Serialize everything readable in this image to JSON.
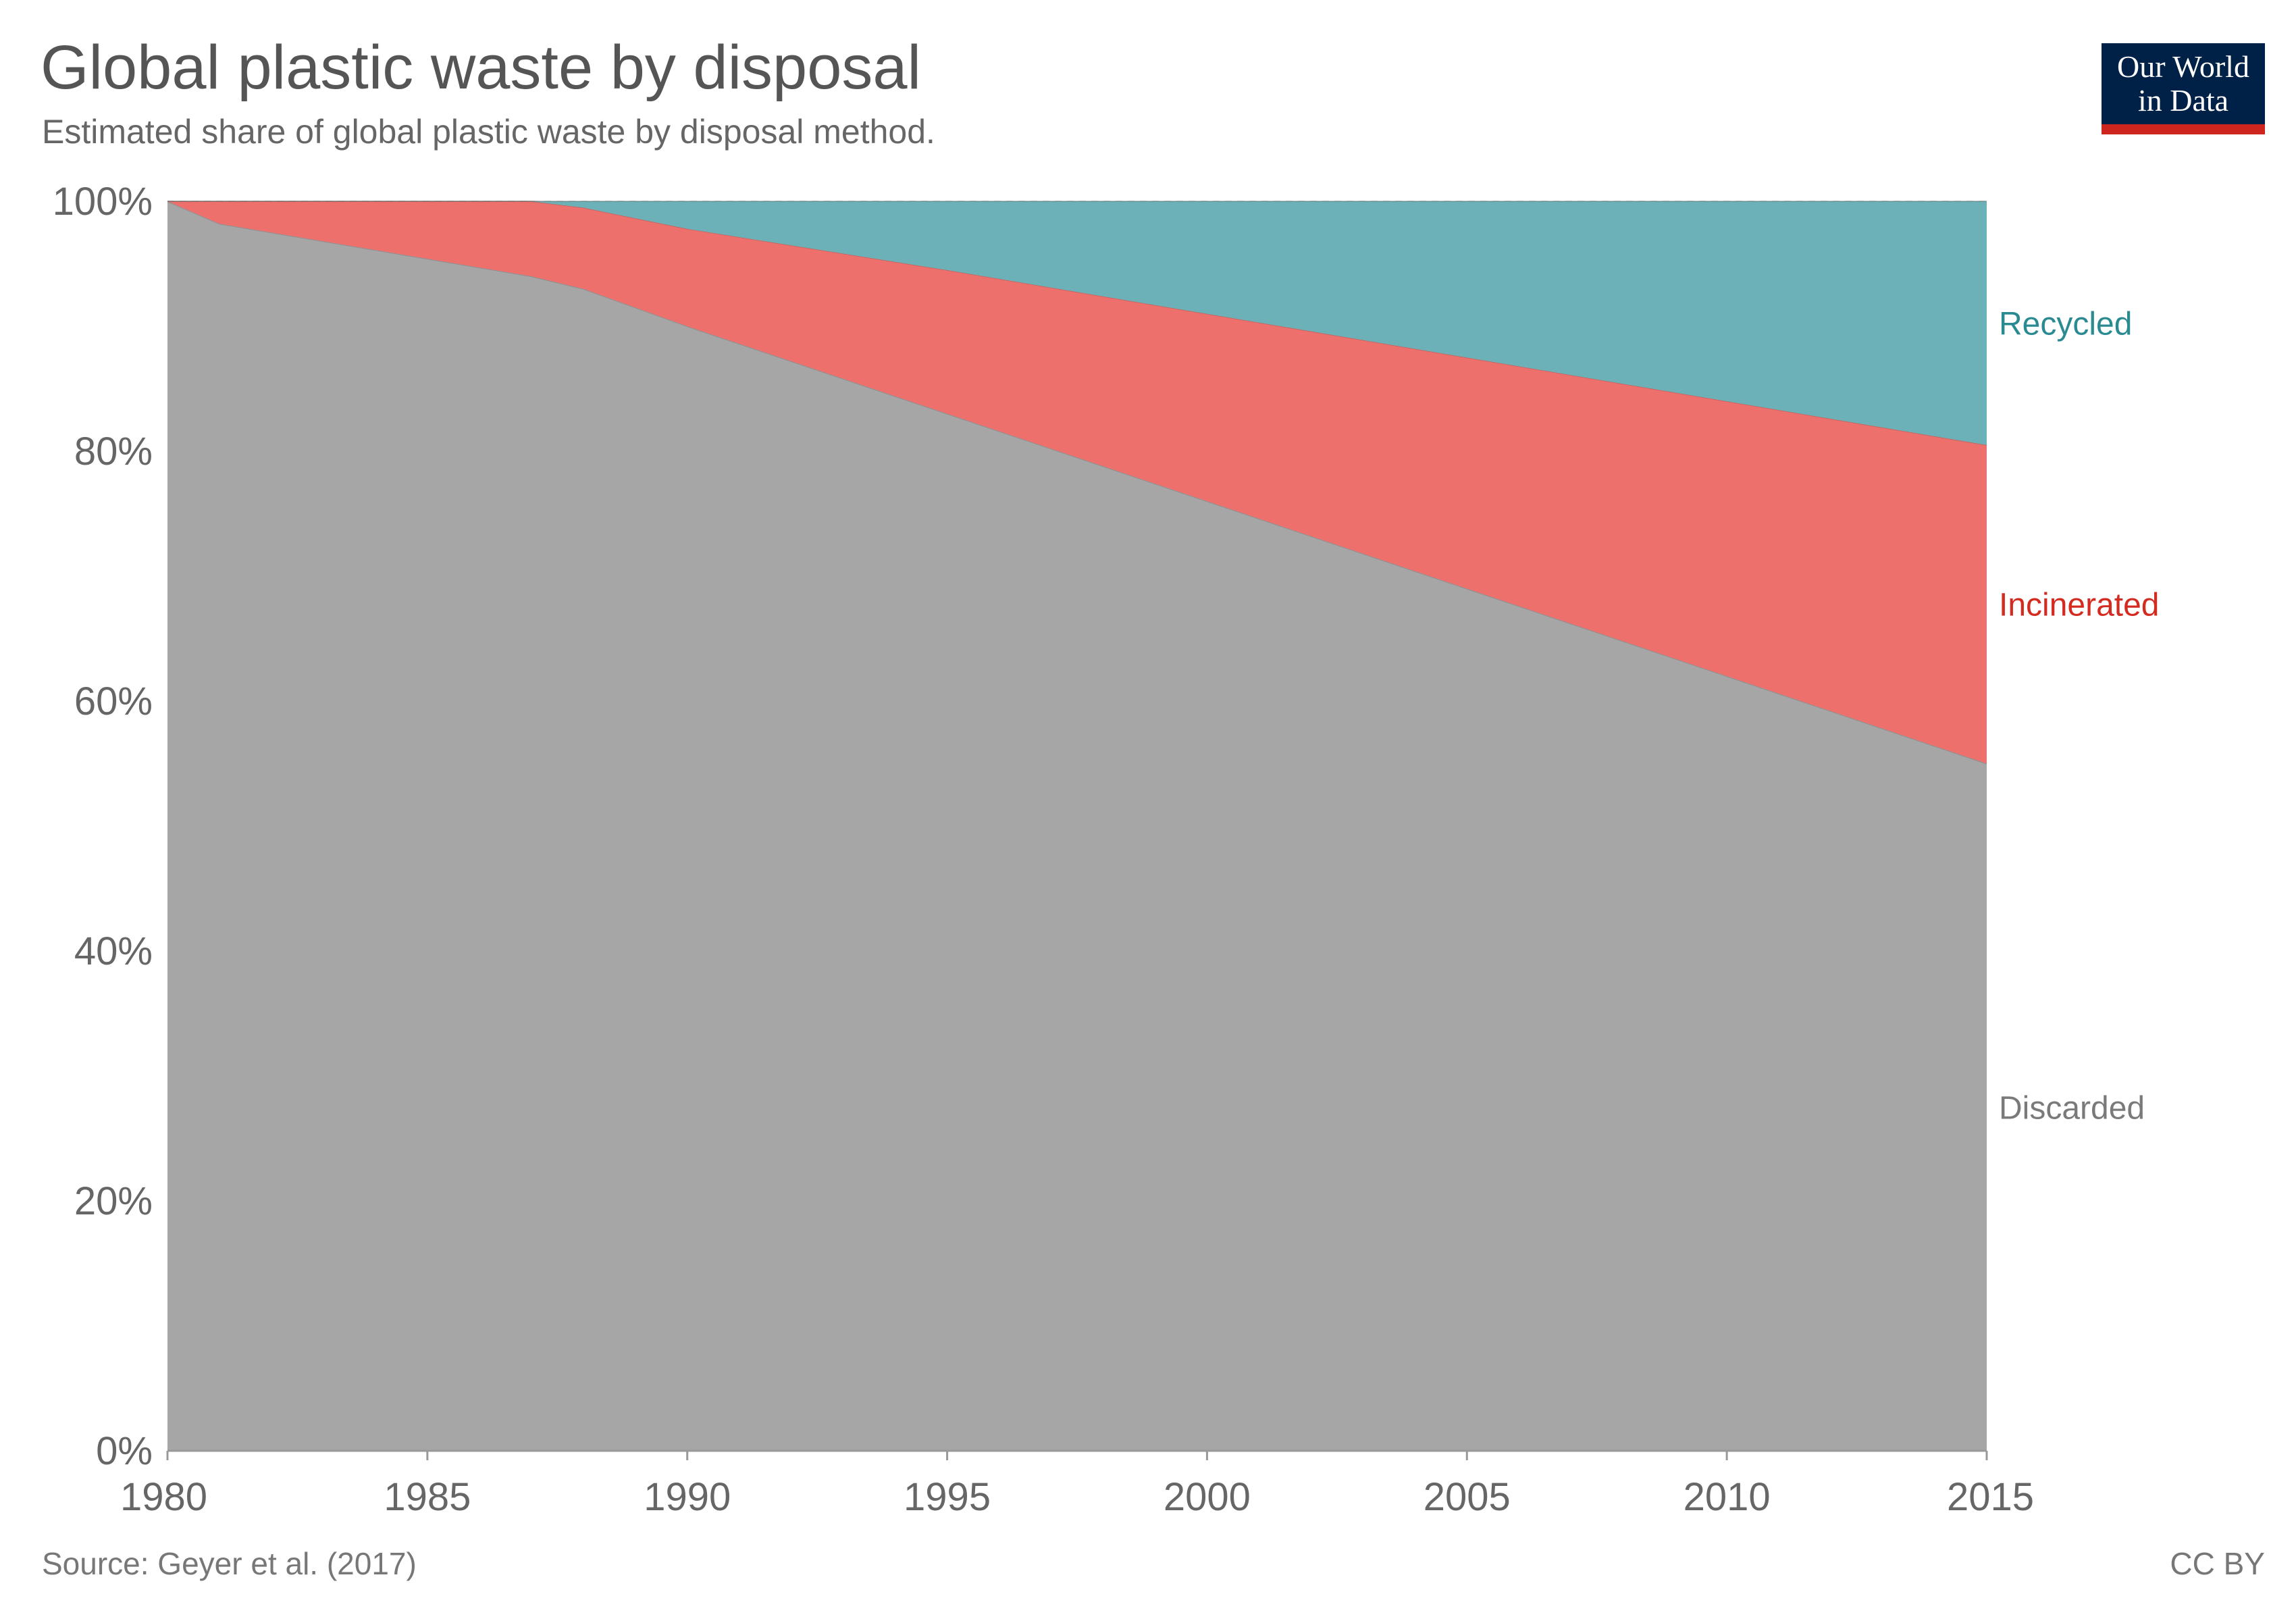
{
  "header": {
    "title": "Global plastic waste by disposal",
    "subtitle": "Estimated share of global plastic waste by disposal method."
  },
  "logo": {
    "line1": "Our World",
    "line2": "in Data",
    "bg_color": "#002147",
    "stripe_color": "#ce261e"
  },
  "footer": {
    "source": "Source: Geyer et al. (2017)",
    "license": "CC BY"
  },
  "chart_data": {
    "type": "area",
    "stacked": true,
    "title": "Global plastic waste by disposal",
    "subtitle": "Estimated share of global plastic waste by disposal method.",
    "x": [
      1980,
      1981,
      1987,
      1988,
      1990,
      1995,
      2000,
      2005,
      2010,
      2015
    ],
    "xlim": [
      1980,
      2015
    ],
    "ylim": [
      0,
      100
    ],
    "x_ticks": [
      "1980",
      "1985",
      "1990",
      "1995",
      "2000",
      "2005",
      "2010",
      "2015"
    ],
    "x_tick_values": [
      1980,
      1985,
      1990,
      1995,
      2000,
      2005,
      2010,
      2015
    ],
    "y_ticks": [
      "0%",
      "20%",
      "40%",
      "60%",
      "80%",
      "100%"
    ],
    "y_tick_values": [
      0,
      20,
      40,
      60,
      80,
      100
    ],
    "grid": "horizontal dashed",
    "legend": "right, labels at end of series",
    "series": [
      {
        "name": "Discarded",
        "color": "#a6a6a6",
        "label_color": "#7a7a7a",
        "values": [
          100,
          98.2,
          94.0,
          93.0,
          90.0,
          83.0,
          76.0,
          69.0,
          62.0,
          55.0
        ]
      },
      {
        "name": "Incinerated",
        "color": "#ee706c",
        "label_color": "#d42b21",
        "values": [
          0,
          1.8,
          6.0,
          6.5,
          7.8,
          11.5,
          15.0,
          18.5,
          22.0,
          25.5
        ]
      },
      {
        "name": "Recycled",
        "color": "#6cb1b7",
        "label_color": "#2a8a92",
        "values": [
          0,
          0,
          0,
          0.5,
          2.2,
          5.5,
          9.0,
          12.5,
          16.0,
          19.5
        ]
      }
    ]
  }
}
